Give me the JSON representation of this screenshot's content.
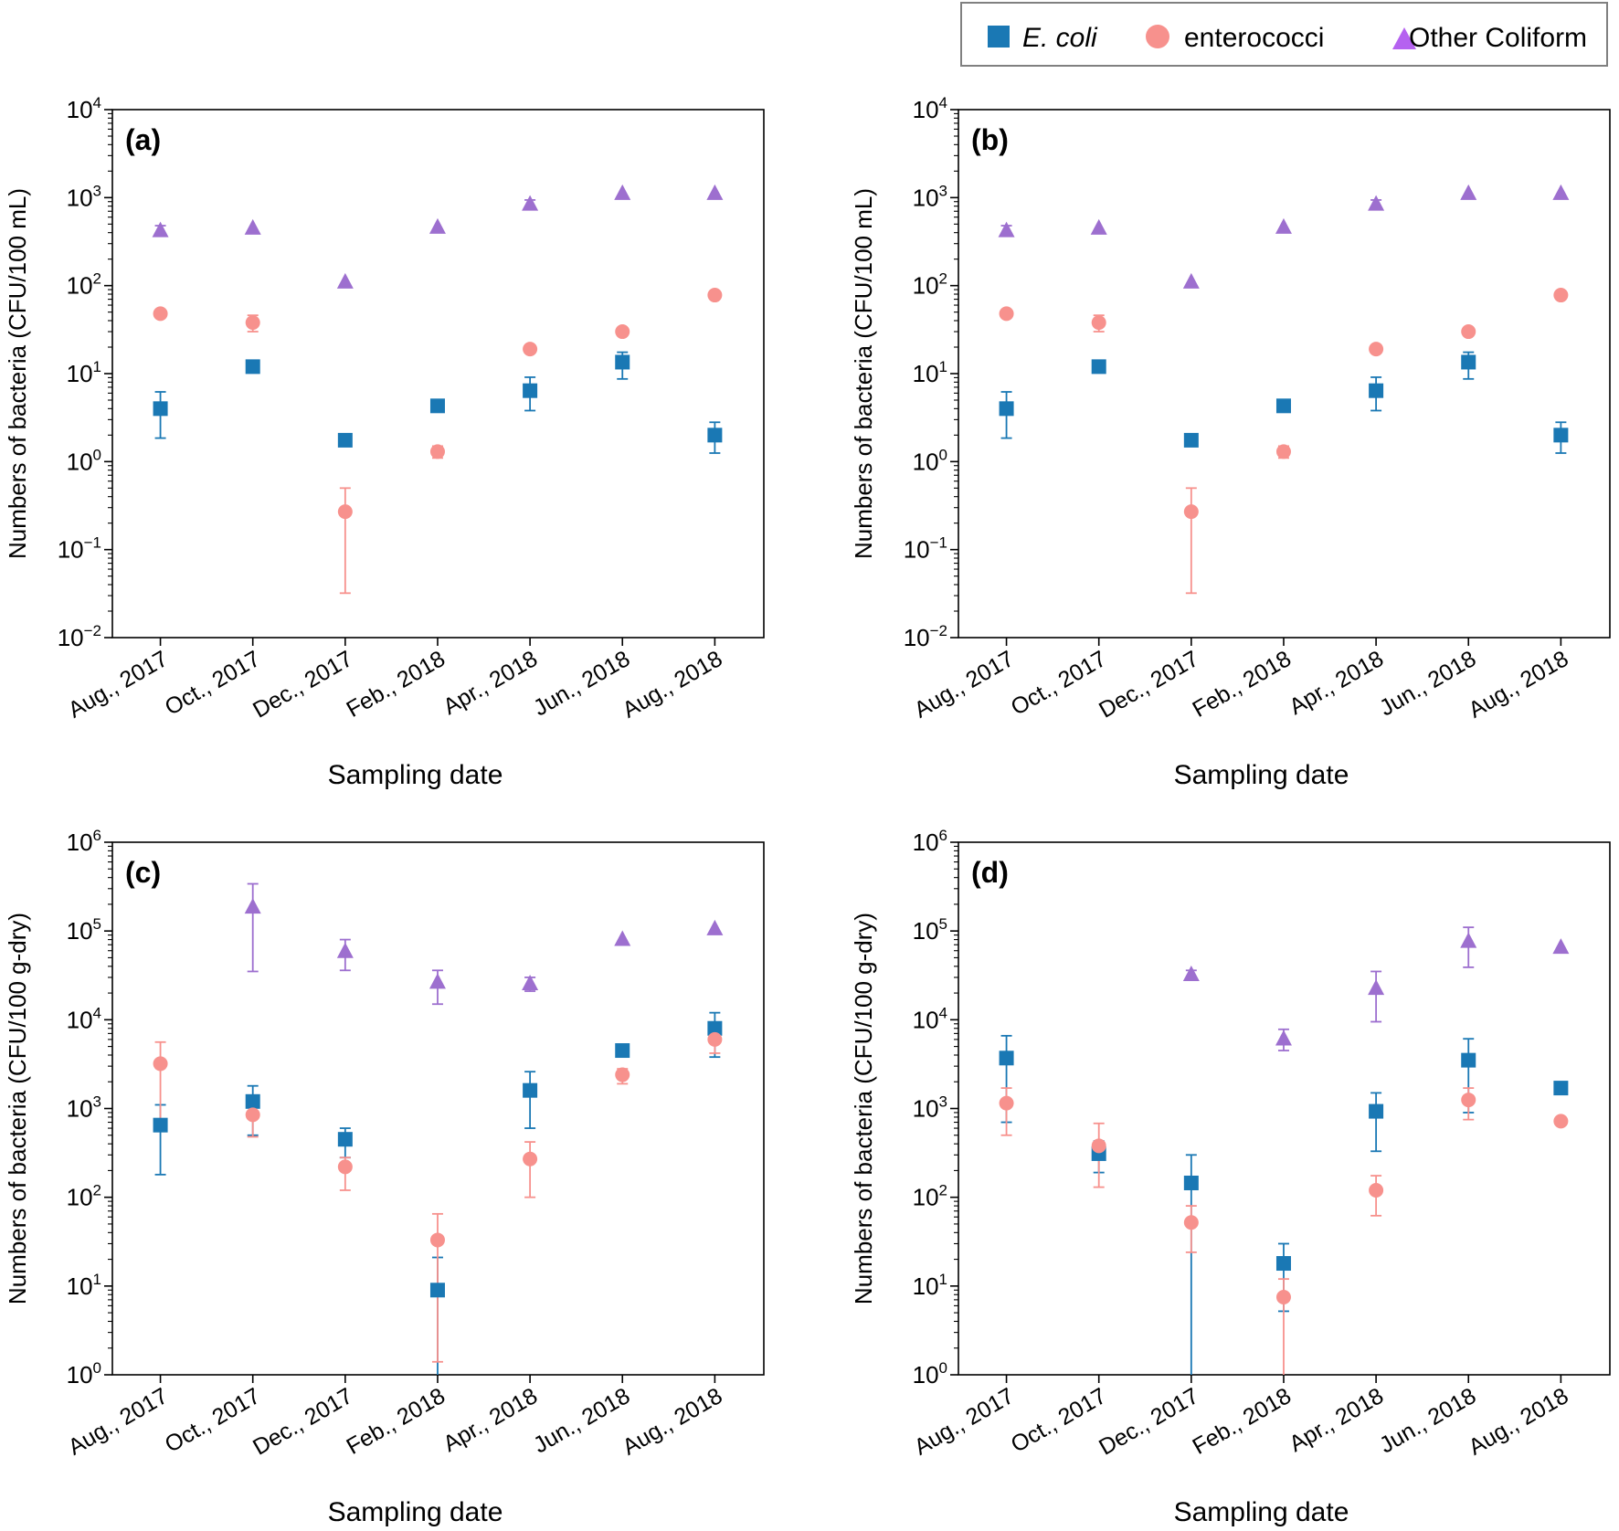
{
  "legend": {
    "entries": [
      {
        "label": "E. coli",
        "italic": true,
        "color": "#1a78b4",
        "marker": "square"
      },
      {
        "label": "enterococci",
        "italic": false,
        "color": "#f7918d",
        "marker": "circle"
      },
      {
        "label": "Other Coliform",
        "italic": false,
        "color": "#9d6fcf",
        "marker": "triangle"
      }
    ],
    "marker_colors": {
      "legend_triangle": "#b562f0"
    }
  },
  "chart_data": [
    {
      "type": "scatter",
      "panel_label": "(a)",
      "title": "",
      "xlabel": "Sampling date",
      "ylabel": "Numbers of bacteria (CFU/100 mL)",
      "yscale": "log",
      "ylim_exp": [
        -2,
        4
      ],
      "categories": [
        "Aug., 2017",
        "Oct., 2017",
        "Dec., 2017",
        "Feb., 2018",
        "Apr., 2018",
        "Jun., 2018",
        "Aug., 2018"
      ],
      "series": [
        {
          "name": "E. coli",
          "values": [
            4.0,
            12.0,
            1.75,
            4.3,
            6.4,
            13.5,
            2.0
          ],
          "err_low": [
            1.85,
            null,
            1.5,
            null,
            3.8,
            8.7,
            1.25
          ],
          "err_high": [
            6.2,
            null,
            1.95,
            null,
            9.1,
            17.5,
            2.8
          ]
        },
        {
          "name": "enterococci",
          "values": [
            48,
            38,
            0.27,
            1.3,
            19,
            30,
            78
          ],
          "err_low": [
            null,
            30,
            0.032,
            1.1,
            null,
            null,
            null
          ],
          "err_high": [
            null,
            46,
            0.5,
            1.5,
            null,
            null,
            null
          ]
        },
        {
          "name": "Other Coliform",
          "values": [
            430,
            460,
            112,
            470,
            860,
            1140,
            1140
          ],
          "err_low": [
            380,
            null,
            null,
            null,
            780,
            null,
            null
          ],
          "err_high": [
            480,
            null,
            null,
            null,
            940,
            null,
            null
          ]
        }
      ]
    },
    {
      "type": "scatter",
      "panel_label": "(b)",
      "title": "",
      "xlabel": "Sampling date",
      "ylabel": "Numbers of bacteria (CFU/100 mL)",
      "yscale": "log",
      "ylim_exp": [
        -2,
        4
      ],
      "categories": [
        "Aug., 2017",
        "Oct., 2017",
        "Dec., 2017",
        "Feb., 2018",
        "Apr., 2018",
        "Jun., 2018",
        "Aug., 2018"
      ],
      "series": [
        {
          "name": "E. coli",
          "values": [
            4.0,
            12.0,
            1.75,
            4.3,
            6.4,
            13.5,
            2.0
          ],
          "err_low": [
            1.85,
            null,
            1.5,
            null,
            3.8,
            8.7,
            1.25
          ],
          "err_high": [
            6.2,
            null,
            1.95,
            null,
            9.1,
            17.5,
            2.8
          ]
        },
        {
          "name": "enterococci",
          "values": [
            48,
            38,
            0.27,
            1.3,
            19,
            30,
            78
          ],
          "err_low": [
            null,
            30,
            0.032,
            1.1,
            null,
            null,
            null
          ],
          "err_high": [
            null,
            46,
            0.5,
            1.5,
            null,
            null,
            null
          ]
        },
        {
          "name": "Other Coliform",
          "values": [
            430,
            460,
            112,
            470,
            860,
            1140,
            1140
          ],
          "err_low": [
            380,
            null,
            null,
            null,
            780,
            null,
            null
          ],
          "err_high": [
            480,
            null,
            null,
            null,
            940,
            null,
            null
          ]
        }
      ]
    },
    {
      "type": "scatter",
      "panel_label": "(c)",
      "title": "",
      "xlabel": "Sampling date",
      "ylabel": "Numbers of bacteria (CFU/100 g-dry)",
      "yscale": "log",
      "ylim_exp": [
        0,
        6
      ],
      "categories": [
        "Aug., 2017",
        "Oct., 2017",
        "Dec., 2017",
        "Feb., 2018",
        "Apr., 2018",
        "Jun., 2018",
        "Aug., 2018"
      ],
      "series": [
        {
          "name": "E. coli",
          "values": [
            650,
            1200,
            450,
            9,
            1600,
            4500,
            8000
          ],
          "err_low": [
            180,
            500,
            280,
            1,
            600,
            null,
            3800
          ],
          "err_high": [
            1100,
            1800,
            600,
            21,
            2600,
            null,
            12000
          ]
        },
        {
          "name": "enterococci",
          "values": [
            3200,
            850,
            220,
            33,
            270,
            2400,
            6000
          ],
          "err_low": [
            700,
            480,
            120,
            1.4,
            100,
            1900,
            4200
          ],
          "err_high": [
            5600,
            1100,
            280,
            65,
            420,
            2800,
            7500
          ]
        },
        {
          "name": "Other Coliform",
          "values": [
            null,
            190000,
            60000,
            27000,
            26000,
            82000,
            108000
          ],
          "err_low": [
            null,
            35000,
            36000,
            15000,
            21000,
            null,
            null
          ],
          "err_high": [
            null,
            340000,
            80000,
            36000,
            30000,
            null,
            null
          ]
        }
      ]
    },
    {
      "type": "scatter",
      "panel_label": "(d)",
      "title": "",
      "xlabel": "Sampling date",
      "ylabel": "Numbers of bacteria (CFU/100 g-dry)",
      "yscale": "log",
      "ylim_exp": [
        0,
        6
      ],
      "categories": [
        "Aug., 2017",
        "Oct., 2017",
        "Dec., 2017",
        "Feb., 2018",
        "Apr., 2018",
        "Jun., 2018",
        "Aug., 2018"
      ],
      "series": [
        {
          "name": "E. coli",
          "values": [
            3700,
            310,
            145,
            18,
            930,
            3500,
            1700
          ],
          "err_low": [
            700,
            190,
            1,
            5.2,
            330,
            900,
            null
          ],
          "err_high": [
            6600,
            430,
            300,
            30,
            1500,
            6100,
            null
          ]
        },
        {
          "name": "enterococci",
          "values": [
            1150,
            380,
            52,
            7.5,
            120,
            1250,
            720
          ],
          "err_low": [
            500,
            130,
            24,
            1,
            62,
            750,
            null
          ],
          "err_high": [
            1700,
            680,
            80,
            12,
            175,
            1700,
            null
          ]
        },
        {
          "name": "Other Coliform",
          "values": [
            null,
            null,
            33000,
            6200,
            23000,
            78000,
            67000
          ],
          "err_low": [
            null,
            null,
            30000,
            4500,
            9500,
            39000,
            null
          ],
          "err_high": [
            null,
            null,
            36000,
            7800,
            35000,
            110000,
            null
          ]
        }
      ]
    }
  ]
}
